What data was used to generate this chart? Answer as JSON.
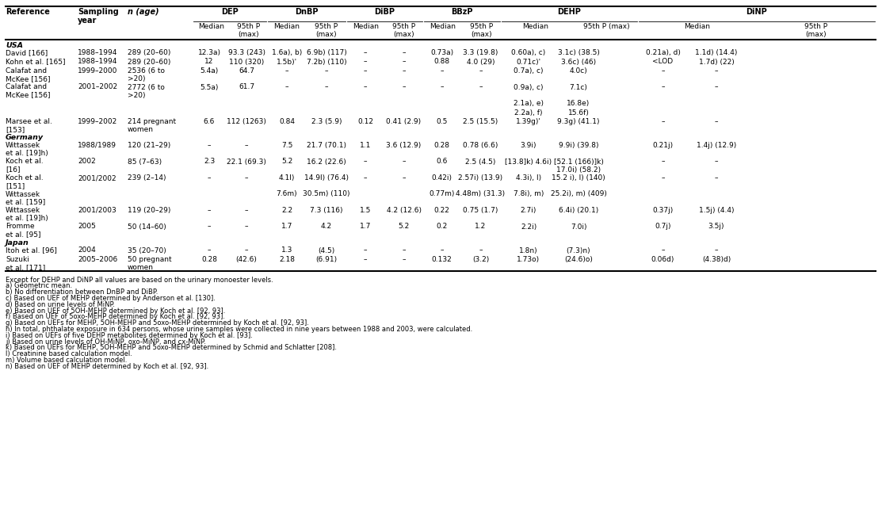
{
  "footnotes": [
    "Except for DEHP and DiNP all values are based on the urinary monoester levels.",
    "a) Geometric mean.",
    "b) No differentiation between DnBP and DiBP.",
    "c) Based on UEF of MEHP determined by Anderson et al. [130].",
    "d) Based on urine levels of MiNP.",
    "e) Based on UEF of 5OH-MEHP determined by Koch et al. [92, 93].",
    "f) Based on UEF of 5oxo-MEHP determined by Koch et al. [92, 93].",
    "g) Based on UEFs for MEHP, 5OH-MEHP and 5oxo-MEHP determined by Koch et al. [92, 93].",
    "h) In total, phthalate exposure in 634 persons, whose urine samples were collected in nine years between 1988 and 2003, were calculated.",
    "i) Based on UEFs of five DEHP metabolites determined by Koch et al. [93].",
    "j) Based on urine levels of OH-MiNP, oxo-MiNP, and cx-MiNP.",
    "k) Based on UEFs for MEHP, 5OH-MEHP and 5oxo-MEHP determined by Schmid and Schlatter [208].",
    "l) Creatinine based calculation model.",
    "m) Volume based calculation model.",
    "n) Based on UEF of MEHP determined by Koch et al. [92, 93]."
  ]
}
